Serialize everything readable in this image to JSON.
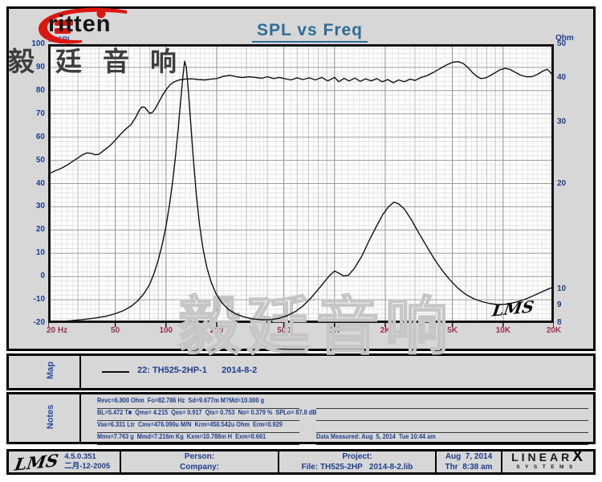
{
  "header": {
    "brand_text": "ritten",
    "brand_cjk": "毅廷音响",
    "title": "SPL vs Freq"
  },
  "chart_data": {
    "type": "line",
    "title": "SPL vs Freq",
    "x_axis": {
      "label": "Hz",
      "scale": "log",
      "min": 20,
      "max": 20000,
      "ticks": [
        {
          "f": 20,
          "label": "20 Hz"
        },
        {
          "f": 50,
          "label": "50"
        },
        {
          "f": 100,
          "label": "100"
        },
        {
          "f": 200,
          "label": "200"
        },
        {
          "f": 500,
          "label": "500"
        },
        {
          "f": 1000,
          "label": "1K"
        },
        {
          "f": 2000,
          "label": "2K"
        },
        {
          "f": 5000,
          "label": "5K"
        },
        {
          "f": 10000,
          "label": "10K"
        },
        {
          "f": 20000,
          "label": "20K"
        }
      ]
    },
    "y_left_axis": {
      "label": "dBSPL",
      "scale": "linear",
      "min": -20,
      "max": 100,
      "major_step": 10,
      "minor_step": 2,
      "ticks": [
        100,
        90,
        80,
        70,
        60,
        50,
        40,
        30,
        20,
        10,
        0,
        -10,
        -20
      ]
    },
    "y_right_axis": {
      "label": "Ohm",
      "scale": "log",
      "min": 8,
      "max": 50,
      "ticks": [
        50,
        40,
        30,
        20,
        10,
        9,
        8
      ]
    },
    "grid": "on",
    "legend_position": "map-panel",
    "watermark": "毅廷音响",
    "inplot_logo": "LMS",
    "series": [
      {
        "name": "22: TH525-2HP-1  2014-8-2 (SPL)",
        "axis": "left",
        "unit": "dBSPL",
        "points": [
          [
            20,
            44
          ],
          [
            22,
            45.5
          ],
          [
            24,
            46.6
          ],
          [
            26,
            48
          ],
          [
            28,
            49.6
          ],
          [
            30,
            51
          ],
          [
            32,
            52.4
          ],
          [
            34,
            53.2
          ],
          [
            36,
            53
          ],
          [
            38,
            52.4
          ],
          [
            40,
            52.6
          ],
          [
            43,
            54.4
          ],
          [
            46,
            56
          ],
          [
            50,
            58.6
          ],
          [
            54,
            61.4
          ],
          [
            58,
            63.6
          ],
          [
            62,
            65.4
          ],
          [
            66,
            68.4
          ],
          [
            69,
            71.2
          ],
          [
            72,
            73
          ],
          [
            75,
            72.8
          ],
          [
            78,
            71.2
          ],
          [
            80,
            70.2
          ],
          [
            83,
            70.6
          ],
          [
            86,
            72
          ],
          [
            90,
            74.6
          ],
          [
            95,
            77.8
          ],
          [
            100,
            80.4
          ],
          [
            106,
            82.6
          ],
          [
            112,
            83.8
          ],
          [
            120,
            84.6
          ],
          [
            130,
            85
          ],
          [
            142,
            85.1
          ],
          [
            155,
            84.8
          ],
          [
            170,
            84.6
          ],
          [
            185,
            85
          ],
          [
            200,
            85.2
          ],
          [
            220,
            86.2
          ],
          [
            240,
            86.6
          ],
          [
            262,
            86
          ],
          [
            285,
            85.6
          ],
          [
            310,
            86
          ],
          [
            340,
            85.7
          ],
          [
            370,
            85.3
          ],
          [
            400,
            86
          ],
          [
            435,
            85.2
          ],
          [
            470,
            85.7
          ],
          [
            510,
            85.1
          ],
          [
            550,
            84.6
          ],
          [
            600,
            85.5
          ],
          [
            650,
            84.8
          ],
          [
            710,
            85.5
          ],
          [
            770,
            84.6
          ],
          [
            840,
            85.7
          ],
          [
            910,
            84.2
          ],
          [
            1000,
            85.7
          ],
          [
            1060,
            83.8
          ],
          [
            1140,
            85.3
          ],
          [
            1220,
            84.2
          ],
          [
            1320,
            85.4
          ],
          [
            1420,
            84
          ],
          [
            1530,
            85.1
          ],
          [
            1650,
            84.2
          ],
          [
            1780,
            85.2
          ],
          [
            1920,
            83.8
          ],
          [
            2070,
            84.8
          ],
          [
            2230,
            83.4
          ],
          [
            2400,
            84.6
          ],
          [
            2600,
            83.8
          ],
          [
            2800,
            85
          ],
          [
            3000,
            84.4
          ],
          [
            3250,
            85.6
          ],
          [
            3550,
            86.5
          ],
          [
            3850,
            87.8
          ],
          [
            4200,
            89.4
          ],
          [
            4600,
            91
          ],
          [
            5000,
            92.2
          ],
          [
            5400,
            92.5
          ],
          [
            5800,
            91.7
          ],
          [
            6200,
            89.9
          ],
          [
            6600,
            87.7
          ],
          [
            7000,
            86.1
          ],
          [
            7400,
            85.2
          ],
          [
            7900,
            85.5
          ],
          [
            8400,
            86.5
          ],
          [
            9000,
            87.8
          ],
          [
            9600,
            89
          ],
          [
            10300,
            89.6
          ],
          [
            11000,
            89.1
          ],
          [
            11800,
            87.9
          ],
          [
            12700,
            86.7
          ],
          [
            13700,
            86
          ],
          [
            14800,
            86
          ],
          [
            16000,
            87
          ],
          [
            17200,
            88.4
          ],
          [
            18300,
            89.2
          ],
          [
            19200,
            87.6
          ],
          [
            20000,
            86.2
          ]
        ]
      },
      {
        "name": "22: TH525-2HP-1  2014-8-2 (Impedance)",
        "axis": "right",
        "unit": "Ohm",
        "points": [
          [
            20,
            8.02
          ],
          [
            26,
            8.1
          ],
          [
            32,
            8.18
          ],
          [
            38,
            8.26
          ],
          [
            44,
            8.36
          ],
          [
            50,
            8.5
          ],
          [
            56,
            8.68
          ],
          [
            62,
            8.92
          ],
          [
            68,
            9.25
          ],
          [
            74,
            9.7
          ],
          [
            80,
            10.3
          ],
          [
            85,
            11.1
          ],
          [
            90,
            12.1
          ],
          [
            95,
            13.4
          ],
          [
            100,
            15.1
          ],
          [
            105,
            17.4
          ],
          [
            110,
            20.6
          ],
          [
            114,
            24
          ],
          [
            118,
            28.5
          ],
          [
            122,
            34
          ],
          [
            126,
            40.5
          ],
          [
            129,
            44.7
          ],
          [
            132,
            43
          ],
          [
            136,
            36.5
          ],
          [
            140,
            30
          ],
          [
            145,
            23.8
          ],
          [
            151,
            18.8
          ],
          [
            158,
            15.3
          ],
          [
            166,
            13
          ],
          [
            175,
            11.5
          ],
          [
            186,
            10.4
          ],
          [
            198,
            9.7
          ],
          [
            214,
            9.15
          ],
          [
            234,
            8.75
          ],
          [
            258,
            8.5
          ],
          [
            288,
            8.33
          ],
          [
            325,
            8.22
          ],
          [
            370,
            8.17
          ],
          [
            420,
            8.18
          ],
          [
            470,
            8.25
          ],
          [
            525,
            8.4
          ],
          [
            585,
            8.62
          ],
          [
            650,
            8.95
          ],
          [
            720,
            9.4
          ],
          [
            790,
            9.9
          ],
          [
            860,
            10.4
          ],
          [
            930,
            10.9
          ],
          [
            1000,
            11.25
          ],
          [
            1060,
            11.1
          ],
          [
            1130,
            10.9
          ],
          [
            1210,
            10.95
          ],
          [
            1310,
            11.45
          ],
          [
            1450,
            12.4
          ],
          [
            1600,
            13.7
          ],
          [
            1760,
            15
          ],
          [
            1930,
            16.3
          ],
          [
            2100,
            17.2
          ],
          [
            2250,
            17.7
          ],
          [
            2400,
            17.5
          ],
          [
            2600,
            16.9
          ],
          [
            2850,
            15.8
          ],
          [
            3150,
            14.5
          ],
          [
            3500,
            13.3
          ],
          [
            3900,
            12.2
          ],
          [
            4350,
            11.3
          ],
          [
            4850,
            10.6
          ],
          [
            5400,
            10.05
          ],
          [
            6000,
            9.65
          ],
          [
            6700,
            9.38
          ],
          [
            7500,
            9.2
          ],
          [
            8400,
            9.08
          ],
          [
            9500,
            9.02
          ],
          [
            10700,
            9.06
          ],
          [
            12000,
            9.18
          ],
          [
            13500,
            9.35
          ],
          [
            15200,
            9.58
          ],
          [
            17000,
            9.82
          ],
          [
            19000,
            10.05
          ],
          [
            20000,
            10.12
          ]
        ]
      }
    ]
  },
  "map": {
    "label": "Map",
    "legend_line": "22: TH525-2HP-1      2014-8-2"
  },
  "notes": {
    "label": "Notes",
    "left_lines": [
      "Revc=6.800 Ohm  Fo=82.786 Hz  Sd=9.677m M?Md=10.000 g",
      "BL=5.472 T■  Qms= 4.215  Qes= 0.917  Qts= 0.753  No= 0.379 %  SPLo= 87.8 dB",
      "Vas=6.331 Ltr  Cms=476.090u M/N  Krm=450.542u Ohm  Erm=0.929",
      "Mms=7.763 g  Mmd=7.216m Kg  Kxm=10.788m H  Exm=0.661"
    ],
    "right_lines": [
      "",
      "",
      "",
      "Data Measured: Aug  5, 2014  Tue 10:44 am"
    ]
  },
  "footer": {
    "lms_logo": "LMS",
    "version": "4.5.0.351",
    "version_date": "二月-12-2005",
    "person_label": "Person:",
    "company_label": "Company:",
    "project_label": "Project:",
    "file_label": "File: TH525-2HP   2014-8-2.lib",
    "date": "Aug  7, 2014",
    "time": "Thr  8:38 am",
    "linearx_top": "LINEAR",
    "linearx_x": "X",
    "linearx_bottom": "SYSTEMS"
  },
  "colors": {
    "title": "#2e6d94",
    "axis_labels_blue": "#1e3e8c",
    "freq_labels_maroon": "#9e2f50",
    "brand_red": "#da1710",
    "panel_gray": "#d7d7d7",
    "curve_black": "#111111",
    "watermark_gray": "#c6c6c6"
  }
}
